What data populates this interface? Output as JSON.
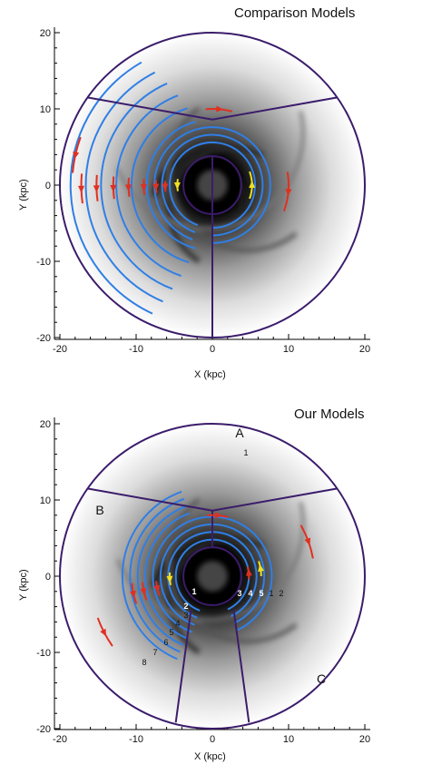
{
  "panels": [
    {
      "title": "Comparison Models",
      "xlabel": "X (kpc)",
      "ylabel": "Y (kpc)",
      "ticks": [
        "-20",
        "-10",
        "0",
        "10",
        "20"
      ],
      "region_labels": [],
      "arm_numbers": []
    },
    {
      "title": "Our Models",
      "xlabel": "X (kpc)",
      "ylabel": "Y (kpc)",
      "ticks": [
        "-20",
        "-10",
        "0",
        "10",
        "20"
      ],
      "region_labels": [
        "A",
        "B",
        "C"
      ],
      "arm_numbers": [
        "1",
        "1",
        "2",
        "3",
        "4",
        "5",
        "1",
        "2",
        "3",
        "4",
        "5",
        "6",
        "7",
        "8"
      ]
    }
  ],
  "colors": {
    "boundary": "#3b1c6b",
    "arcs": "#2f7fe6",
    "red_arrows": "#e03020",
    "yellow_arrows": "#f0e020",
    "disk_dark": "#000000"
  }
}
